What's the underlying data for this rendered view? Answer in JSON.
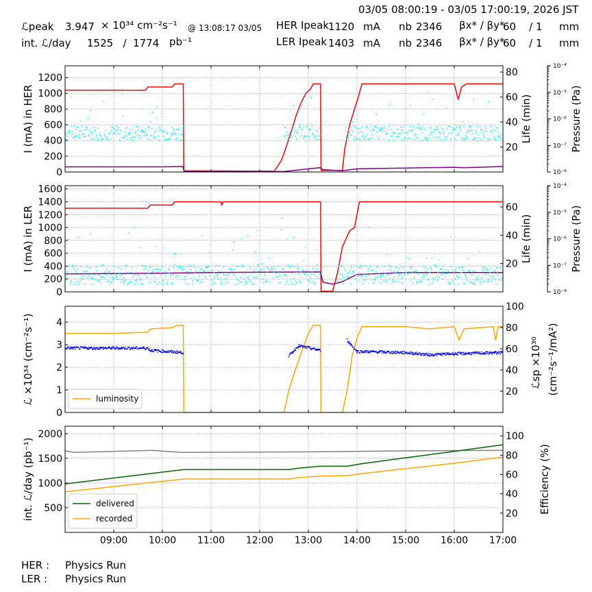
{
  "header": {
    "time_range": "03/05 08:00:19 - 03/05 17:00:19, 2026 JST",
    "lpeak_label": "ℒpeak",
    "lpeak_value": "3.947",
    "lpeak_unit": "× 10³⁴ cm⁻²s⁻¹",
    "lpeak_time": "@ 13:08:17 03/05",
    "intl_label": "int. ℒ/day",
    "intl_values": "1525   /  1774",
    "intl_unit": "pb⁻¹",
    "her_label": "HER Ipeak",
    "her_value": "1120",
    "ler_label": "LER Ipeak",
    "ler_value": "1403",
    "unit_ma": "mA",
    "nb_label": "nb",
    "nb_value": "2346",
    "beta_label": "βx* / βy*",
    "beta_value": "60    / 1",
    "unit_mm": "mm"
  },
  "footer": {
    "her_label": "HER :",
    "her_status": "Physics Run",
    "ler_label": "LER :",
    "ler_status": "Physics Run"
  },
  "colors": {
    "current": "#ff0000",
    "pressure": "#800080",
    "lifetime": "#00ffff",
    "luminosity": "#ffa500",
    "specific_lum": "#0000ff",
    "delivered": "#006400",
    "recorded": "#ffa500",
    "efficiency": "#808080"
  },
  "chart_data": [
    {
      "id": "her",
      "type": "line",
      "ylabel": "I (mA) in HER",
      "ylim": [
        0,
        1350
      ],
      "yticks": [
        "0",
        "200",
        "400",
        "600",
        "800",
        "1000",
        "1200"
      ],
      "y2label": "Life (min)",
      "y2lim": [
        0,
        85
      ],
      "y2ticks": [
        "20",
        "40",
        "60",
        "80"
      ],
      "y3label": "Pressure (Pa)",
      "y3ticks": [
        "10⁻⁸",
        "10⁻⁷",
        "10⁻⁶",
        "10⁻⁵",
        "10⁻⁴"
      ],
      "grid": true,
      "series": [
        {
          "key": "current",
          "color_key": "current",
          "axis": "y1",
          "points": [
            [
              8.0,
              1040
            ],
            [
              9.65,
              1040
            ],
            [
              9.7,
              1080
            ],
            [
              10.2,
              1080
            ],
            [
              10.25,
              1120
            ],
            [
              10.43,
              1120
            ],
            [
              10.44,
              15
            ],
            [
              12.3,
              10
            ],
            [
              12.45,
              150
            ],
            [
              12.55,
              330
            ],
            [
              12.65,
              520
            ],
            [
              12.75,
              720
            ],
            [
              12.85,
              880
            ],
            [
              12.95,
              1000
            ],
            [
              13.05,
              1060
            ],
            [
              13.1,
              1120
            ],
            [
              13.25,
              1120
            ],
            [
              13.26,
              20
            ],
            [
              13.7,
              20
            ],
            [
              13.75,
              300
            ],
            [
              13.85,
              600
            ],
            [
              13.95,
              800
            ],
            [
              14.05,
              1000
            ],
            [
              14.1,
              1120
            ],
            [
              16.0,
              1120
            ],
            [
              16.08,
              920
            ],
            [
              16.15,
              1080
            ],
            [
              16.25,
              1120
            ],
            [
              17.0,
              1120
            ]
          ]
        },
        {
          "key": "pressure",
          "color_key": "pressure",
          "axis": "y1",
          "points": [
            [
              8.0,
              65
            ],
            [
              9.0,
              65
            ],
            [
              10.0,
              65
            ],
            [
              10.42,
              70
            ],
            [
              10.45,
              10
            ],
            [
              12.5,
              5
            ],
            [
              13.0,
              40
            ],
            [
              13.25,
              55
            ],
            [
              13.3,
              30
            ],
            [
              13.7,
              15
            ],
            [
              14.0,
              40
            ],
            [
              15.0,
              50
            ],
            [
              16.0,
              60
            ],
            [
              16.2,
              55
            ],
            [
              17.0,
              70
            ]
          ]
        },
        {
          "key": "lifetime",
          "color_key": "lifetime",
          "axis": "y2",
          "scatter": true,
          "x_range": [
            8.0,
            17.0
          ],
          "level": 31,
          "spread": 6,
          "gaps": [
            [
              10.45,
              12.5
            ],
            [
              13.25,
              13.75
            ]
          ]
        }
      ]
    },
    {
      "id": "ler",
      "type": "line",
      "ylabel": "I (mA) in LER",
      "ylim": [
        0,
        1650
      ],
      "yticks": [
        "0",
        "200",
        "400",
        "600",
        "800",
        "1000",
        "1200",
        "1400",
        "1600"
      ],
      "y2label": "Life (min)",
      "y2lim": [
        0,
        75
      ],
      "y2ticks": [
        "20",
        "40",
        "60"
      ],
      "y3label": "Pressure (Pa)",
      "y3ticks": [
        "10⁻⁸",
        "10⁻⁷",
        "10⁻⁶",
        "10⁻⁵",
        "10⁻⁴"
      ],
      "grid": true,
      "series": [
        {
          "key": "current",
          "color_key": "current",
          "axis": "y1",
          "points": [
            [
              8.0,
              1300
            ],
            [
              9.7,
              1300
            ],
            [
              9.75,
              1350
            ],
            [
              10.2,
              1350
            ],
            [
              10.25,
              1400
            ],
            [
              11.2,
              1400
            ],
            [
              11.22,
              1350
            ],
            [
              11.25,
              1400
            ],
            [
              13.25,
              1400
            ],
            [
              13.26,
              10
            ],
            [
              13.5,
              10
            ],
            [
              13.6,
              300
            ],
            [
              13.7,
              700
            ],
            [
              13.85,
              950
            ],
            [
              13.95,
              1000
            ],
            [
              14.05,
              1400
            ],
            [
              17.0,
              1400
            ]
          ]
        },
        {
          "key": "pressure",
          "color_key": "pressure",
          "axis": "y1",
          "points": [
            [
              8.0,
              280
            ],
            [
              10.0,
              290
            ],
            [
              11.0,
              300
            ],
            [
              12.0,
              305
            ],
            [
              13.25,
              310
            ],
            [
              13.3,
              150
            ],
            [
              13.5,
              120
            ],
            [
              13.7,
              160
            ],
            [
              14.0,
              270
            ],
            [
              15.0,
              300
            ],
            [
              17.0,
              300
            ]
          ]
        },
        {
          "key": "lifetime",
          "color_key": "lifetime",
          "axis": "y2",
          "scatter": true,
          "x_range": [
            8.0,
            17.0
          ],
          "level": 12,
          "spread": 7,
          "gaps": [
            [
              13.25,
              13.6
            ]
          ]
        }
      ]
    },
    {
      "id": "lum",
      "type": "line",
      "ylabel": "ℒ ×10³⁴ (cm⁻²s⁻¹)",
      "ylim": [
        0,
        4.7
      ],
      "yticks": [
        "0",
        "1",
        "2",
        "3",
        "4"
      ],
      "y2label": "ℒsp ×10³⁰",
      "y2label2": "(cm⁻²s⁻¹/mA²)",
      "y2lim": [
        0,
        100
      ],
      "y2ticks": [
        "20",
        "40",
        "60",
        "80",
        "100"
      ],
      "grid": true,
      "legend": {
        "position": "bottom-left",
        "entries": [
          {
            "name": "luminosity",
            "color_key": "luminosity"
          }
        ]
      },
      "series": [
        {
          "key": "luminosity",
          "color_key": "luminosity",
          "axis": "y1",
          "points": [
            [
              8.0,
              3.5
            ],
            [
              9.0,
              3.5
            ],
            [
              9.7,
              3.55
            ],
            [
              9.75,
              3.7
            ],
            [
              10.2,
              3.75
            ],
            [
              10.3,
              3.85
            ],
            [
              10.43,
              3.85
            ],
            [
              10.44,
              0
            ],
            [
              12.5,
              0
            ],
            [
              12.6,
              1.0
            ],
            [
              12.75,
              2.0
            ],
            [
              12.85,
              2.6
            ],
            [
              13.0,
              3.5
            ],
            [
              13.1,
              3.85
            ],
            [
              13.25,
              3.85
            ],
            [
              13.26,
              0
            ],
            [
              13.7,
              0
            ],
            [
              13.8,
              1.0
            ],
            [
              13.9,
              2.5
            ],
            [
              14.0,
              3.3
            ],
            [
              14.1,
              3.8
            ],
            [
              15.0,
              3.8
            ],
            [
              15.5,
              3.7
            ],
            [
              16.0,
              3.8
            ],
            [
              16.1,
              3.2
            ],
            [
              16.2,
              3.7
            ],
            [
              16.8,
              3.8
            ],
            [
              16.85,
              3.2
            ],
            [
              16.9,
              3.8
            ],
            [
              17.0,
              3.8
            ]
          ]
        },
        {
          "key": "specific_lum",
          "color_key": "specific_lum",
          "axis": "y1",
          "noisy": true,
          "points": [
            [
              8.0,
              2.85
            ],
            [
              9.7,
              2.85
            ],
            [
              9.75,
              2.75
            ],
            [
              10.43,
              2.65
            ],
            [
              10.44,
              null
            ],
            [
              12.55,
              null
            ],
            [
              12.6,
              2.5
            ],
            [
              12.8,
              2.95
            ],
            [
              13.25,
              2.75
            ],
            [
              13.26,
              null
            ],
            [
              13.75,
              null
            ],
            [
              13.8,
              3.2
            ],
            [
              14.0,
              2.7
            ],
            [
              15.0,
              2.65
            ],
            [
              15.5,
              2.55
            ],
            [
              16.0,
              2.6
            ],
            [
              17.0,
              2.65
            ]
          ]
        }
      ]
    },
    {
      "id": "intl",
      "type": "line",
      "ylabel": "int. ℒ/day (pb⁻¹)",
      "ylim": [
        0,
        2150
      ],
      "yticks": [
        "500",
        "1000",
        "1500",
        "2000"
      ],
      "y2label": "Efficiency (%)",
      "y2lim": [
        0,
        110
      ],
      "y2ticks": [
        "20",
        "40",
        "60",
        "80",
        "100"
      ],
      "xticks": [
        "09:00",
        "10:00",
        "11:00",
        "12:00",
        "13:00",
        "14:00",
        "15:00",
        "16:00",
        "17:00"
      ],
      "xlim": [
        8.0,
        17.0
      ],
      "grid": true,
      "legend": {
        "position": "bottom-left",
        "entries": [
          {
            "name": "delivered",
            "color_key": "delivered"
          },
          {
            "name": "recorded",
            "color_key": "recorded"
          }
        ]
      },
      "series": [
        {
          "key": "efficiency",
          "color_key": "efficiency",
          "axis": "y1",
          "points": [
            [
              8.0,
              1650
            ],
            [
              8.2,
              1620
            ],
            [
              9.0,
              1640
            ],
            [
              9.8,
              1660
            ],
            [
              10.0,
              1645
            ],
            [
              10.4,
              1620
            ],
            [
              13.0,
              1630
            ],
            [
              15.0,
              1650
            ],
            [
              17.0,
              1660
            ]
          ]
        },
        {
          "key": "delivered",
          "color_key": "delivered",
          "axis": "y1",
          "points": [
            [
              8.0,
              980
            ],
            [
              10.43,
              1270
            ],
            [
              12.6,
              1270
            ],
            [
              12.8,
              1300
            ],
            [
              13.25,
              1340
            ],
            [
              13.8,
              1340
            ],
            [
              14.1,
              1390
            ],
            [
              15.0,
              1510
            ],
            [
              16.0,
              1640
            ],
            [
              17.0,
              1774
            ]
          ]
        },
        {
          "key": "recorded",
          "color_key": "recorded",
          "axis": "y1",
          "points": [
            [
              8.0,
              820
            ],
            [
              10.43,
              1080
            ],
            [
              12.6,
              1080
            ],
            [
              12.8,
              1110
            ],
            [
              13.25,
              1140
            ],
            [
              13.8,
              1150
            ],
            [
              14.1,
              1190
            ],
            [
              15.0,
              1290
            ],
            [
              16.0,
              1400
            ],
            [
              17.0,
              1525
            ]
          ]
        }
      ]
    }
  ]
}
